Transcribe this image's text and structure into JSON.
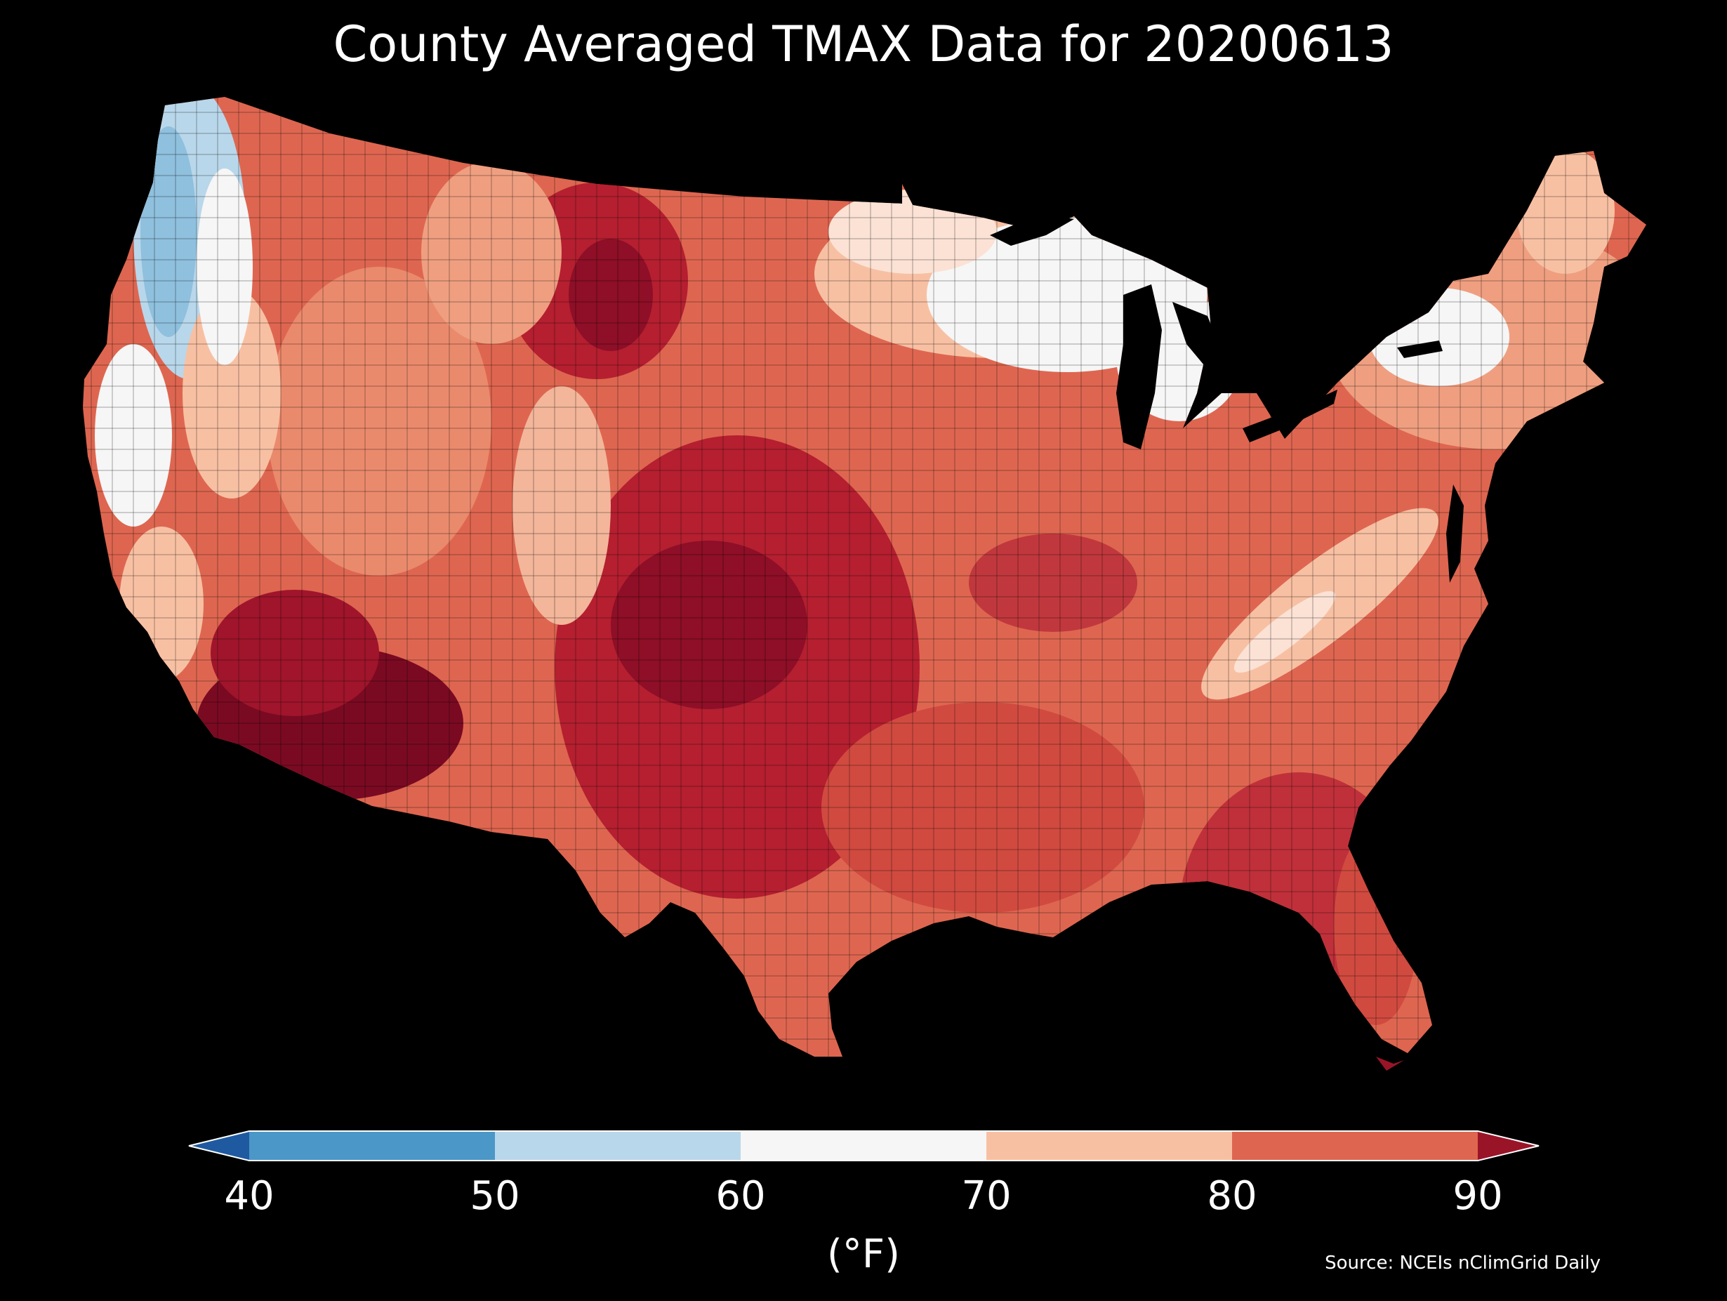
{
  "title": "County Averaged TMAX Data for 20200613",
  "source": "Source: NCEIs nClimGrid Daily",
  "colorbar": {
    "unit_label": "(°F)",
    "ticks": [
      "40",
      "50",
      "60",
      "70",
      "80",
      "90"
    ],
    "bins": [
      {
        "range": "<40",
        "color": "#1f5aa0"
      },
      {
        "range": "40-50",
        "color": "#4b97c8"
      },
      {
        "range": "50-60",
        "color": "#b9d7ea"
      },
      {
        "range": "60-70",
        "color": "#f6f6f6"
      },
      {
        "range": "70-80",
        "color": "#f8c0a3"
      },
      {
        "range": "80-90",
        "color": "#de6650"
      },
      {
        "range": ">90",
        "color": "#9a1428"
      }
    ]
  },
  "map": {
    "region": "Contiguous United States",
    "unit": "county",
    "variable": "TMAX",
    "date": "20200613",
    "regions": [
      {
        "name": "Pacific Northwest coast",
        "value_bin": "50-60"
      },
      {
        "name": "Northern California coast",
        "value_bin": "60-70"
      },
      {
        "name": "Great Lakes / Upper Midwest",
        "value_bin": "60-70"
      },
      {
        "name": "Northern Plains",
        "value_bin": "80-90"
      },
      {
        "name": "Southern Plains / Texas",
        "value_bin": ">90"
      },
      {
        "name": "Desert Southwest",
        "value_bin": ">90"
      },
      {
        "name": "Southeast",
        "value_bin": "80-90"
      },
      {
        "name": "Appalachians",
        "value_bin": "70-80"
      },
      {
        "name": "Northeast",
        "value_bin": "70-80"
      }
    ]
  }
}
